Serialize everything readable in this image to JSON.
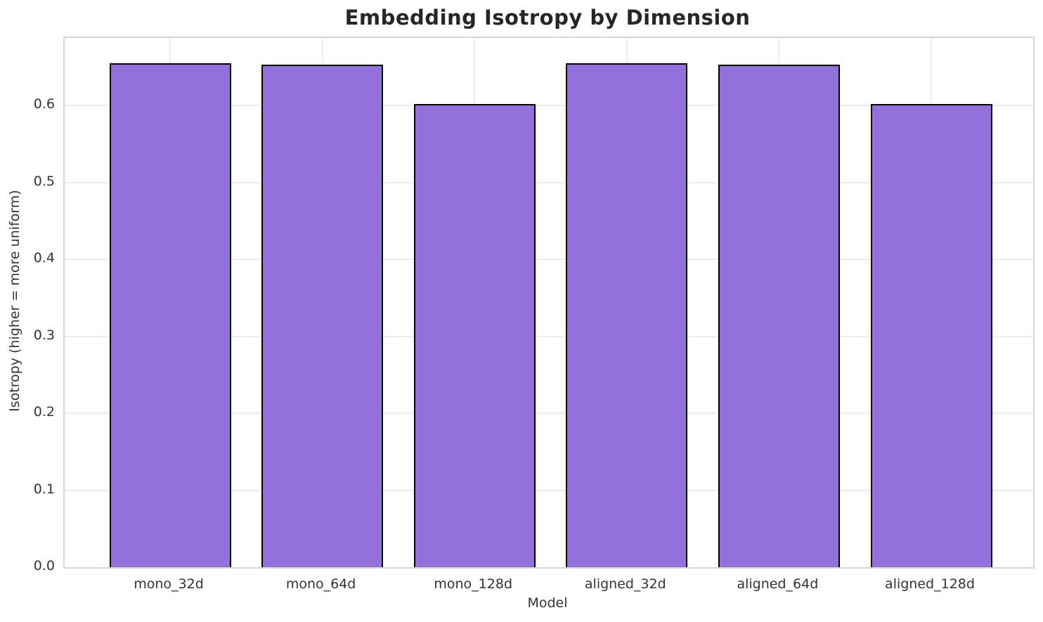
{
  "chart_data": {
    "type": "bar",
    "title": "Embedding Isotropy by Dimension",
    "xlabel": "Model",
    "ylabel": "Isotropy (higher = more uniform)",
    "categories": [
      "mono_32d",
      "mono_64d",
      "mono_128d",
      "aligned_32d",
      "aligned_64d",
      "aligned_128d"
    ],
    "values": [
      0.655,
      0.653,
      0.602,
      0.655,
      0.653,
      0.602
    ],
    "ylim": [
      0,
      0.688
    ],
    "ytick_values": [
      0.0,
      0.1,
      0.2,
      0.3,
      0.4,
      0.5,
      0.6
    ],
    "ytick_labels": [
      "0.0",
      "0.1",
      "0.2",
      "0.3",
      "0.4",
      "0.5",
      "0.6"
    ],
    "grid": "both",
    "legend": "none",
    "colors": {
      "bar_fill": "#9370DB",
      "bar_edge": "#000000",
      "gridline": "#ececec",
      "spine": "#d6d6d6",
      "title_text": "#262626",
      "tick_text": "#333333"
    }
  }
}
